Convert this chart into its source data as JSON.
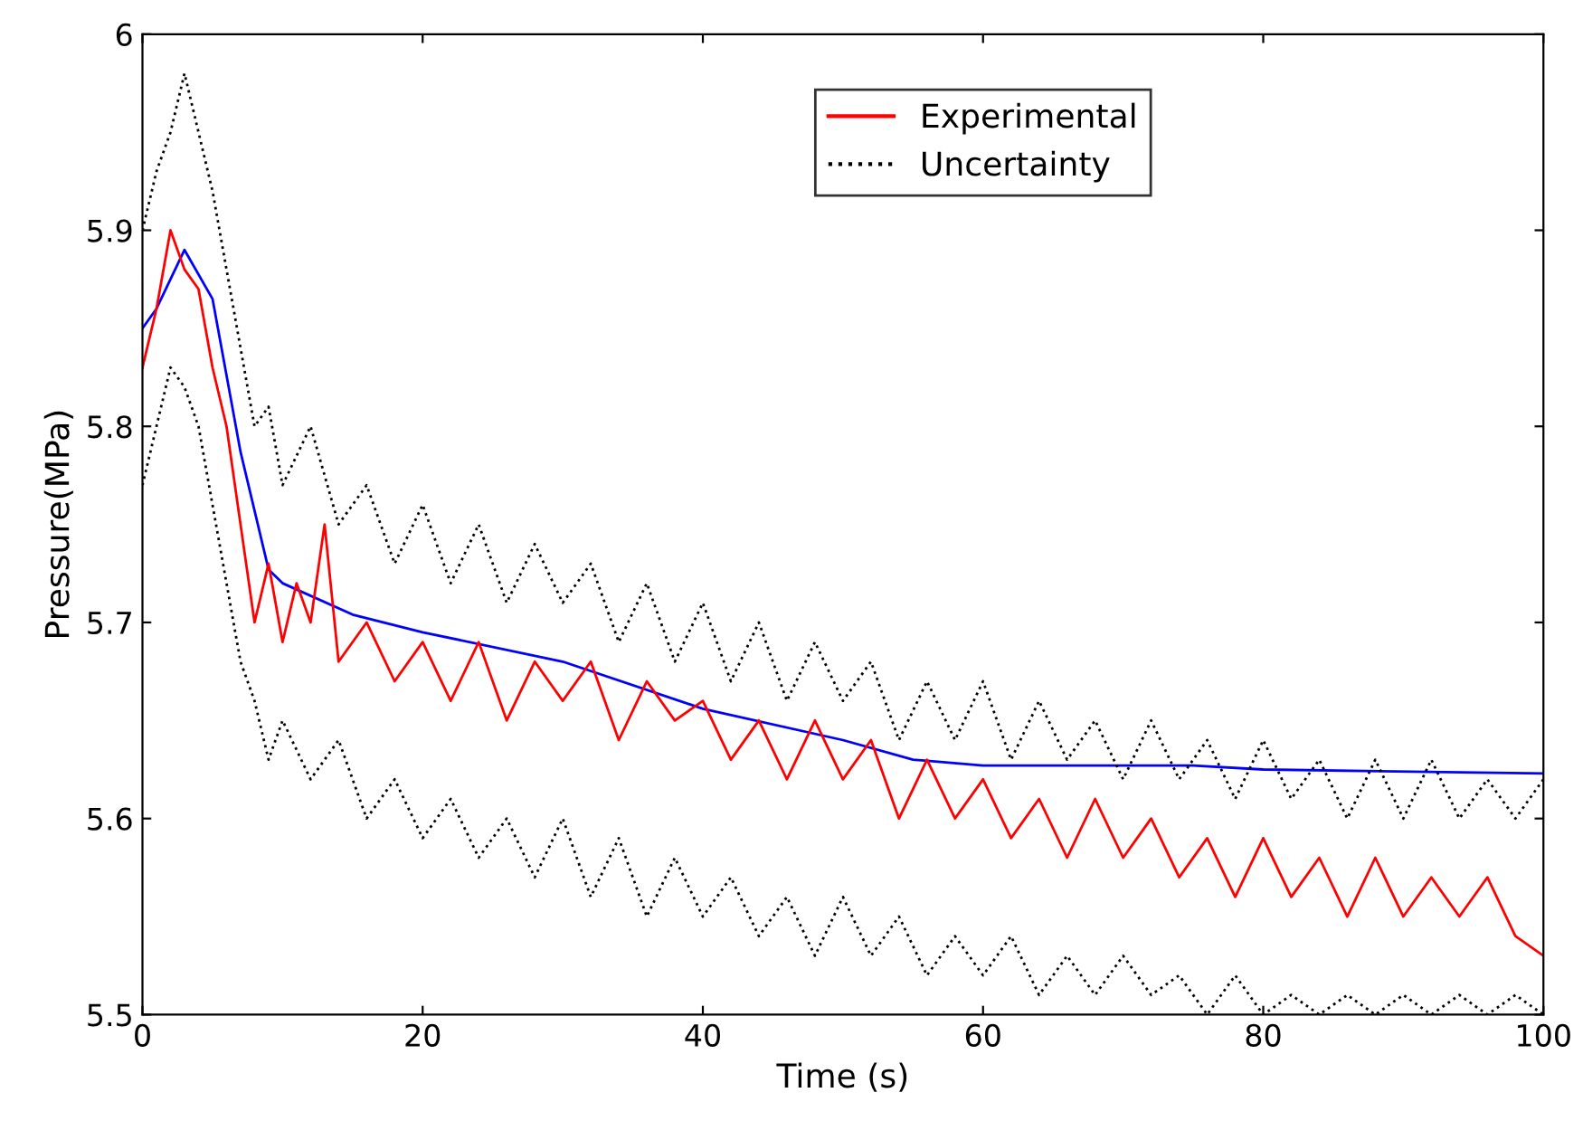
{
  "chart_data": {
    "type": "line",
    "xlabel": "Time (s)",
    "ylabel": "Pressure(MPa)",
    "xlim": [
      0,
      100
    ],
    "ylim": [
      5.5,
      6
    ],
    "xticks": [
      0,
      20,
      40,
      60,
      80,
      100
    ],
    "yticks": [
      5.5,
      5.6,
      5.7,
      5.8,
      5.9,
      6
    ],
    "grid": false,
    "legend": "top",
    "line_style": "solid",
    "series": [
      {
        "color": "#0000ff",
        "x": [
          0,
          1,
          3,
          5,
          7,
          9,
          10,
          15,
          20,
          30,
          40,
          50,
          55,
          60,
          75,
          80,
          100
        ],
        "values": [
          5.85,
          5.86,
          5.89,
          5.865,
          5.787,
          5.727,
          5.72,
          5.704,
          5.695,
          5.68,
          5.656,
          5.64,
          5.63,
          5.627,
          5.627,
          5.625,
          5.623
        ]
      },
      {
        "name": "Experimental",
        "color": "#ff0000",
        "x": [
          0,
          1,
          2,
          3,
          4,
          5,
          6,
          7,
          8,
          9,
          10,
          11,
          12,
          13,
          14,
          16,
          18,
          20,
          22,
          24,
          26,
          28,
          30,
          32,
          34,
          36,
          38,
          40,
          42,
          44,
          46,
          48,
          50,
          52,
          54,
          56,
          58,
          60,
          62,
          64,
          66,
          68,
          70,
          72,
          74,
          76,
          78,
          80,
          82,
          84,
          86,
          88,
          90,
          92,
          94,
          96,
          98,
          100
        ],
        "values": [
          5.83,
          5.86,
          5.9,
          5.88,
          5.87,
          5.83,
          5.8,
          5.75,
          5.7,
          5.73,
          5.69,
          5.72,
          5.7,
          5.75,
          5.68,
          5.7,
          5.67,
          5.69,
          5.66,
          5.69,
          5.65,
          5.68,
          5.66,
          5.68,
          5.64,
          5.67,
          5.65,
          5.66,
          5.63,
          5.65,
          5.62,
          5.65,
          5.62,
          5.64,
          5.6,
          5.63,
          5.6,
          5.62,
          5.59,
          5.61,
          5.58,
          5.61,
          5.58,
          5.6,
          5.57,
          5.59,
          5.56,
          5.59,
          5.56,
          5.58,
          5.55,
          5.58,
          5.55,
          5.57,
          5.55,
          5.57,
          5.54,
          5.53
        ]
      },
      {
        "name": "Uncertainty",
        "color": "#000000",
        "line_style": "dotted",
        "x": [
          0,
          1,
          2,
          3,
          4,
          5,
          6,
          7,
          8,
          9,
          10,
          12,
          14,
          16,
          18,
          20,
          22,
          24,
          26,
          28,
          30,
          32,
          34,
          36,
          38,
          40,
          42,
          44,
          46,
          48,
          50,
          52,
          54,
          56,
          58,
          60,
          62,
          64,
          66,
          68,
          70,
          72,
          74,
          76,
          78,
          80,
          82,
          84,
          86,
          88,
          90,
          92,
          94,
          96,
          98,
          100
        ],
        "values": [
          5.9,
          5.93,
          5.95,
          5.98,
          5.95,
          5.92,
          5.88,
          5.84,
          5.8,
          5.81,
          5.77,
          5.8,
          5.75,
          5.77,
          5.73,
          5.76,
          5.72,
          5.75,
          5.71,
          5.74,
          5.71,
          5.73,
          5.69,
          5.72,
          5.68,
          5.71,
          5.67,
          5.7,
          5.66,
          5.69,
          5.66,
          5.68,
          5.64,
          5.67,
          5.64,
          5.67,
          5.63,
          5.66,
          5.63,
          5.65,
          5.62,
          5.65,
          5.62,
          5.64,
          5.61,
          5.64,
          5.61,
          5.63,
          5.6,
          5.63,
          5.6,
          5.63,
          5.6,
          5.62,
          5.6,
          5.62
        ]
      },
      {
        "color": "#000000",
        "line_style": "dotted",
        "x": [
          0,
          1,
          2,
          3,
          4,
          5,
          6,
          7,
          8,
          9,
          10,
          12,
          14,
          16,
          18,
          20,
          22,
          24,
          26,
          28,
          30,
          32,
          34,
          36,
          38,
          40,
          42,
          44,
          46,
          48,
          50,
          52,
          54,
          56,
          58,
          60,
          62,
          64,
          66,
          68,
          70,
          72,
          74,
          76,
          78,
          80,
          82,
          84,
          86,
          88,
          90,
          92,
          94,
          96,
          98,
          100
        ],
        "values": [
          5.77,
          5.8,
          5.83,
          5.82,
          5.8,
          5.76,
          5.72,
          5.68,
          5.66,
          5.63,
          5.65,
          5.62,
          5.64,
          5.6,
          5.62,
          5.59,
          5.61,
          5.58,
          5.6,
          5.57,
          5.6,
          5.56,
          5.59,
          5.55,
          5.58,
          5.55,
          5.57,
          5.54,
          5.56,
          5.53,
          5.56,
          5.53,
          5.55,
          5.52,
          5.54,
          5.52,
          5.54,
          5.51,
          5.53,
          5.51,
          5.53,
          5.51,
          5.52,
          5.5,
          5.52,
          5.5,
          5.51,
          5.5,
          5.51,
          5.5,
          5.51,
          5.5,
          5.51,
          5.5,
          5.51,
          5.5
        ]
      }
    ]
  }
}
